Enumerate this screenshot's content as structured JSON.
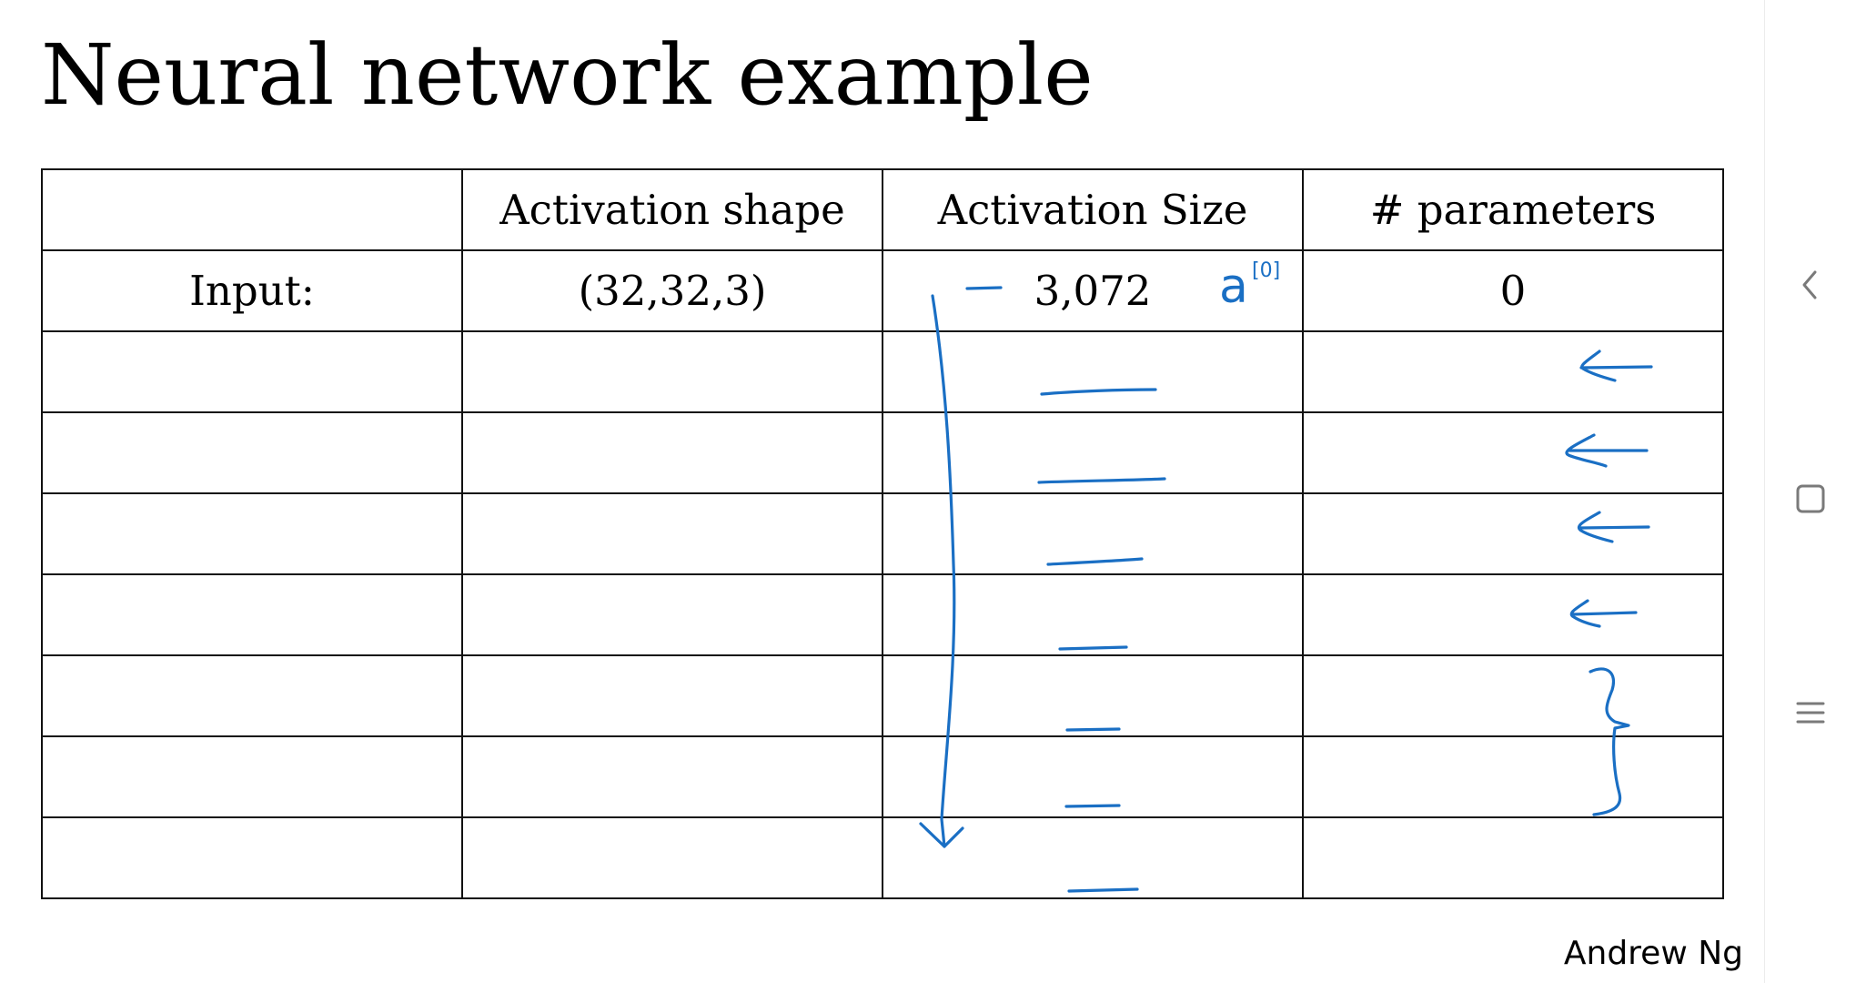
{
  "slide": {
    "title": "Neural network example",
    "author": "Andrew Ng",
    "table": {
      "headers": [
        "",
        "Activation shape",
        "Activation Size",
        "# parameters"
      ],
      "rows": [
        [
          "Input:",
          "(32,32,3)",
          "3,072",
          "0"
        ],
        [
          "",
          "",
          "",
          ""
        ],
        [
          "",
          "",
          "",
          ""
        ],
        [
          "",
          "",
          "",
          ""
        ],
        [
          "",
          "",
          "",
          ""
        ],
        [
          "",
          "",
          "",
          ""
        ],
        [
          "",
          "",
          "",
          ""
        ],
        [
          "",
          "",
          "",
          ""
        ]
      ]
    },
    "annotations": {
      "activation_label": "a",
      "activation_superscript": "[0]"
    }
  },
  "navigation": {
    "back_icon": "chevron-left-icon",
    "home_icon": "square-icon",
    "recents_icon": "menu-lines-icon"
  },
  "colors": {
    "ink": "#1a6fc4",
    "grid": "#111111",
    "nav_icon": "#7a7a7a"
  }
}
